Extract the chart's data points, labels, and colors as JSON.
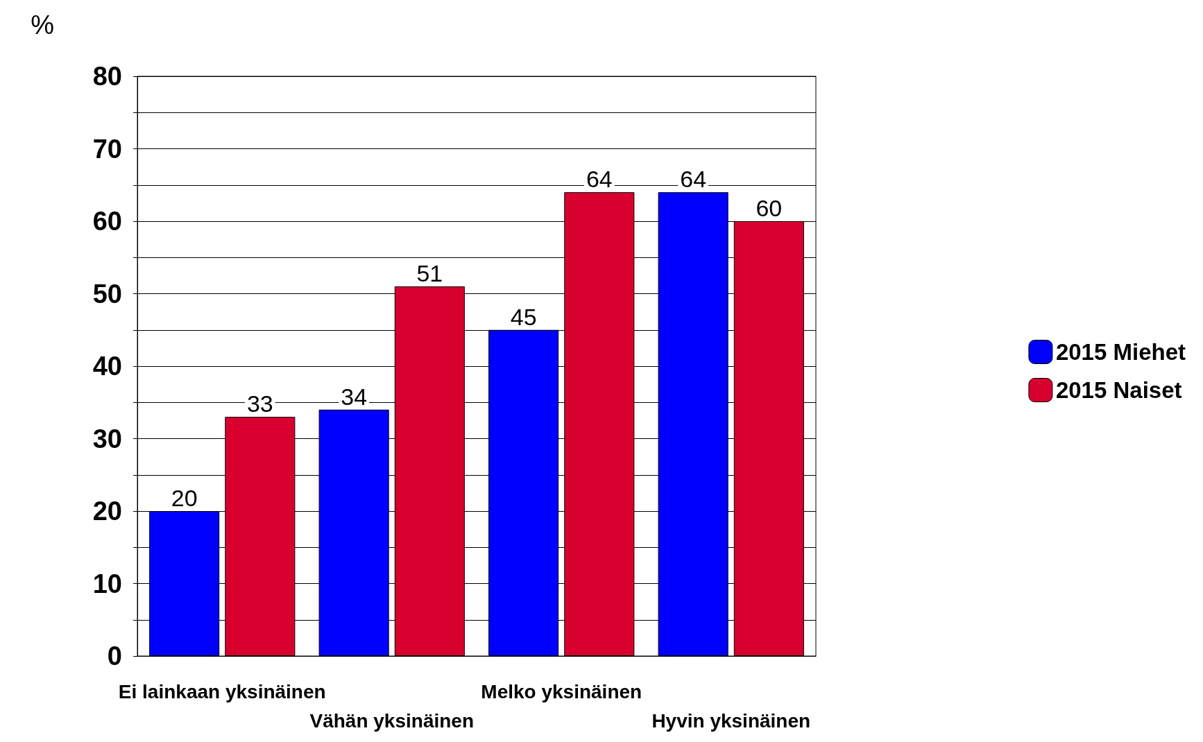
{
  "chart_data": {
    "type": "bar",
    "ylabel": "%",
    "categories": [
      "Ei lainkaan yksinäinen",
      "Vähän yksinäinen",
      "Melko yksinäinen",
      "Hyvin yksinäinen"
    ],
    "series": [
      {
        "name": "2015 Miehet",
        "color": "#0000ff",
        "values": [
          20,
          34,
          45,
          64
        ]
      },
      {
        "name": "2015 Naiset",
        "color": "#d7002e",
        "values": [
          33,
          51,
          64,
          60
        ]
      }
    ],
    "ylim": [
      0,
      80
    ],
    "yticks": [
      0,
      {
        "value": 5,
        "label": null
      },
      10,
      {
        "value": 15,
        "label": null
      },
      20,
      {
        "value": 25,
        "label": null
      },
      30,
      {
        "value": 35,
        "label": null
      },
      40,
      {
        "value": 45,
        "label": null
      },
      50,
      {
        "value": 55,
        "label": null
      },
      60,
      {
        "value": 65,
        "label": null
      },
      70,
      {
        "value": 75,
        "label": null
      },
      80
    ],
    "grid": "y",
    "legend": "right",
    "data_labels": true
  }
}
